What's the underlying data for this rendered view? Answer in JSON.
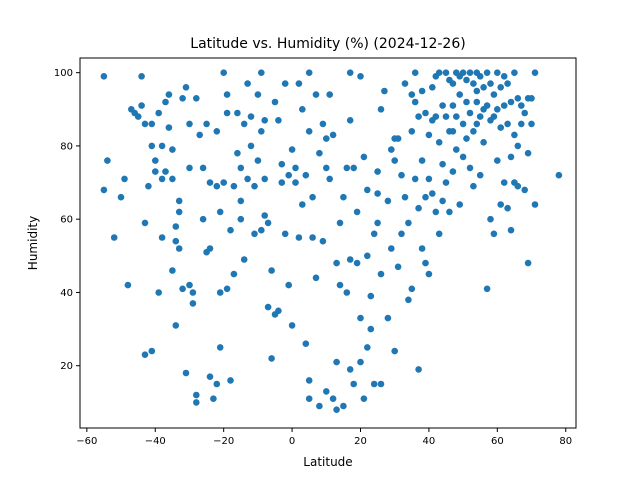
{
  "chart_data": {
    "type": "scatter",
    "title": "Latitude vs. Humidity (%)  (2024-12-26)",
    "xlabel": "Latitude",
    "ylabel": "Humidity",
    "xlim": [
      -62,
      83
    ],
    "ylim": [
      3,
      104
    ],
    "xticks": [
      -60,
      -40,
      -20,
      0,
      20,
      40,
      60,
      80
    ],
    "yticks": [
      20,
      40,
      60,
      80,
      100
    ],
    "grid": false,
    "legend": "none",
    "marker_color": "#1f77b4",
    "points": [
      [
        -55,
        99
      ],
      [
        -55,
        68
      ],
      [
        -54,
        76
      ],
      [
        -52,
        55
      ],
      [
        -50,
        66
      ],
      [
        -49,
        71
      ],
      [
        -48,
        42
      ],
      [
        -47,
        90
      ],
      [
        -46,
        89
      ],
      [
        -45,
        88
      ],
      [
        -44,
        99
      ],
      [
        -44,
        91
      ],
      [
        -43,
        86
      ],
      [
        -43,
        23
      ],
      [
        -43,
        59
      ],
      [
        -42,
        69
      ],
      [
        -41,
        24
      ],
      [
        -41,
        80
      ],
      [
        -41,
        86
      ],
      [
        -40,
        76
      ],
      [
        -40,
        73
      ],
      [
        -39,
        40
      ],
      [
        -39,
        89
      ],
      [
        -38,
        55
      ],
      [
        -38,
        71
      ],
      [
        -37,
        92
      ],
      [
        -37,
        73
      ],
      [
        -36,
        94
      ],
      [
        -36,
        85
      ],
      [
        -35,
        79
      ],
      [
        -35,
        71
      ],
      [
        -35,
        46
      ],
      [
        -34,
        54
      ],
      [
        -34,
        31
      ],
      [
        -34,
        58
      ],
      [
        -33,
        62
      ],
      [
        -33,
        65
      ],
      [
        -33,
        52
      ],
      [
        -32,
        41
      ],
      [
        -32,
        93
      ],
      [
        -31,
        96
      ],
      [
        -31,
        18
      ],
      [
        -30,
        86
      ],
      [
        -30,
        74
      ],
      [
        -30,
        42
      ],
      [
        -29,
        40
      ],
      [
        -29,
        37
      ],
      [
        -28,
        93
      ],
      [
        -28,
        12
      ],
      [
        -28,
        10
      ],
      [
        -27,
        83
      ],
      [
        -26,
        60
      ],
      [
        -25,
        51
      ],
      [
        -25,
        86
      ],
      [
        -24,
        52
      ],
      [
        -24,
        17
      ],
      [
        -24,
        70
      ],
      [
        -23,
        11
      ],
      [
        -22,
        84
      ],
      [
        -22,
        69
      ],
      [
        -22,
        15
      ],
      [
        -21,
        62
      ],
      [
        -21,
        40
      ],
      [
        -21,
        25
      ],
      [
        -20,
        100
      ],
      [
        -20,
        70
      ],
      [
        -19,
        89
      ],
      [
        -19,
        94
      ],
      [
        -19,
        41
      ],
      [
        -18,
        16
      ],
      [
        -18,
        57
      ],
      [
        -17,
        69
      ],
      [
        -17,
        45
      ],
      [
        -16,
        78
      ],
      [
        -16,
        89
      ],
      [
        -15,
        65
      ],
      [
        -15,
        60
      ],
      [
        -14,
        49
      ],
      [
        -14,
        86
      ],
      [
        -13,
        97
      ],
      [
        -13,
        71
      ],
      [
        -12,
        88
      ],
      [
        -12,
        80
      ],
      [
        -11,
        69
      ],
      [
        -11,
        56
      ],
      [
        -10,
        94
      ],
      [
        -10,
        76
      ],
      [
        -9,
        100
      ],
      [
        -9,
        84
      ],
      [
        -9,
        57
      ],
      [
        -8,
        71
      ],
      [
        -8,
        61
      ],
      [
        -7,
        59
      ],
      [
        -7,
        36
      ],
      [
        -6,
        46
      ],
      [
        -6,
        22
      ],
      [
        -5,
        92
      ],
      [
        -5,
        34
      ],
      [
        -4,
        87
      ],
      [
        -4,
        35
      ],
      [
        -3,
        75
      ],
      [
        -3,
        70
      ],
      [
        -2,
        97
      ],
      [
        -2,
        56
      ],
      [
        -1,
        72
      ],
      [
        -1,
        42
      ],
      [
        0,
        79
      ],
      [
        0,
        31
      ],
      [
        1,
        74
      ],
      [
        1,
        70
      ],
      [
        2,
        97
      ],
      [
        2,
        55
      ],
      [
        3,
        90
      ],
      [
        3,
        64
      ],
      [
        4,
        72
      ],
      [
        4,
        26
      ],
      [
        5,
        100
      ],
      [
        5,
        84
      ],
      [
        5,
        16
      ],
      [
        5,
        11
      ],
      [
        6,
        66
      ],
      [
        6,
        55
      ],
      [
        7,
        94
      ],
      [
        7,
        44
      ],
      [
        8,
        78
      ],
      [
        8,
        9
      ],
      [
        9,
        86
      ],
      [
        9,
        54
      ],
      [
        10,
        74
      ],
      [
        10,
        13
      ],
      [
        11,
        94
      ],
      [
        11,
        71
      ],
      [
        12,
        83
      ],
      [
        12,
        11
      ],
      [
        13,
        48
      ],
      [
        13,
        21
      ],
      [
        13,
        8
      ],
      [
        14,
        59
      ],
      [
        14,
        42
      ],
      [
        15,
        66
      ],
      [
        15,
        9
      ],
      [
        16,
        74
      ],
      [
        16,
        40
      ],
      [
        17,
        100
      ],
      [
        17,
        49
      ],
      [
        17,
        19
      ],
      [
        18,
        74
      ],
      [
        18,
        15
      ],
      [
        19,
        62
      ],
      [
        19,
        48
      ],
      [
        20,
        99
      ],
      [
        20,
        33
      ],
      [
        20,
        21
      ],
      [
        21,
        77
      ],
      [
        21,
        11
      ],
      [
        22,
        68
      ],
      [
        22,
        50
      ],
      [
        22,
        25
      ],
      [
        23,
        39
      ],
      [
        23,
        30
      ],
      [
        24,
        56
      ],
      [
        24,
        15
      ],
      [
        25,
        67
      ],
      [
        25,
        59
      ],
      [
        26,
        90
      ],
      [
        26,
        45
      ],
      [
        26,
        15
      ],
      [
        27,
        95
      ],
      [
        28,
        65
      ],
      [
        28,
        33
      ],
      [
        29,
        79
      ],
      [
        29,
        52
      ],
      [
        30,
        76
      ],
      [
        30,
        24
      ],
      [
        31,
        82
      ],
      [
        31,
        47
      ],
      [
        32,
        72
      ],
      [
        32,
        56
      ],
      [
        33,
        97
      ],
      [
        33,
        66
      ],
      [
        34,
        59
      ],
      [
        34,
        38
      ],
      [
        35,
        94
      ],
      [
        35,
        84
      ],
      [
        35,
        41
      ],
      [
        36,
        100
      ],
      [
        36,
        71
      ],
      [
        37,
        88
      ],
      [
        37,
        63
      ],
      [
        37,
        19
      ],
      [
        38,
        95
      ],
      [
        38,
        76
      ],
      [
        38,
        52
      ],
      [
        39,
        89
      ],
      [
        39,
        66
      ],
      [
        39,
        48
      ],
      [
        40,
        83
      ],
      [
        40,
        71
      ],
      [
        40,
        45
      ],
      [
        41,
        96
      ],
      [
        41,
        87
      ],
      [
        41,
        67
      ],
      [
        42,
        99
      ],
      [
        42,
        88
      ],
      [
        42,
        62
      ],
      [
        43,
        100
      ],
      [
        43,
        81
      ],
      [
        43,
        56
      ],
      [
        44,
        91
      ],
      [
        44,
        75
      ],
      [
        44,
        65
      ],
      [
        45,
        100
      ],
      [
        45,
        88
      ],
      [
        45,
        70
      ],
      [
        46,
        98
      ],
      [
        46,
        84
      ],
      [
        46,
        62
      ],
      [
        47,
        97
      ],
      [
        47,
        91
      ],
      [
        47,
        73
      ],
      [
        48,
        100
      ],
      [
        48,
        88
      ],
      [
        48,
        79
      ],
      [
        49,
        99
      ],
      [
        49,
        94
      ],
      [
        49,
        64
      ],
      [
        50,
        100
      ],
      [
        50,
        86
      ],
      [
        50,
        77
      ],
      [
        51,
        98
      ],
      [
        51,
        92
      ],
      [
        51,
        82
      ],
      [
        52,
        100
      ],
      [
        52,
        89
      ],
      [
        52,
        74
      ],
      [
        53,
        97
      ],
      [
        53,
        84
      ],
      [
        53,
        69
      ],
      [
        54,
        100
      ],
      [
        54,
        92
      ],
      [
        54,
        86
      ],
      [
        55,
        99
      ],
      [
        55,
        88
      ],
      [
        55,
        72
      ],
      [
        56,
        96
      ],
      [
        56,
        90
      ],
      [
        56,
        81
      ],
      [
        57,
        100
      ],
      [
        57,
        91
      ],
      [
        57,
        41
      ],
      [
        58,
        97
      ],
      [
        58,
        87
      ],
      [
        58,
        60
      ],
      [
        59,
        94
      ],
      [
        59,
        88
      ],
      [
        59,
        56
      ],
      [
        60,
        100
      ],
      [
        60,
        90
      ],
      [
        60,
        76
      ],
      [
        61,
        96
      ],
      [
        61,
        85
      ],
      [
        61,
        64
      ],
      [
        62,
        99
      ],
      [
        62,
        91
      ],
      [
        62,
        70
      ],
      [
        63,
        97
      ],
      [
        63,
        86
      ],
      [
        63,
        63
      ],
      [
        64,
        92
      ],
      [
        64,
        77
      ],
      [
        64,
        57
      ],
      [
        65,
        100
      ],
      [
        65,
        83
      ],
      [
        65,
        70
      ],
      [
        66,
        93
      ],
      [
        66,
        80
      ],
      [
        66,
        69
      ],
      [
        67,
        91
      ],
      [
        67,
        86
      ],
      [
        68,
        89
      ],
      [
        68,
        68
      ],
      [
        69,
        93
      ],
      [
        69,
        78
      ],
      [
        69,
        48
      ],
      [
        70,
        93
      ],
      [
        70,
        86
      ],
      [
        71,
        64
      ],
      [
        71,
        100
      ],
      [
        78,
        72
      ],
      [
        17,
        87
      ],
      [
        -26,
        74
      ],
      [
        -8,
        87
      ],
      [
        30,
        82
      ],
      [
        47,
        84
      ],
      [
        10,
        82
      ],
      [
        -38,
        80
      ],
      [
        36,
        92
      ],
      [
        54,
        95
      ],
      [
        -15,
        74
      ],
      [
        25,
        73
      ]
    ]
  }
}
